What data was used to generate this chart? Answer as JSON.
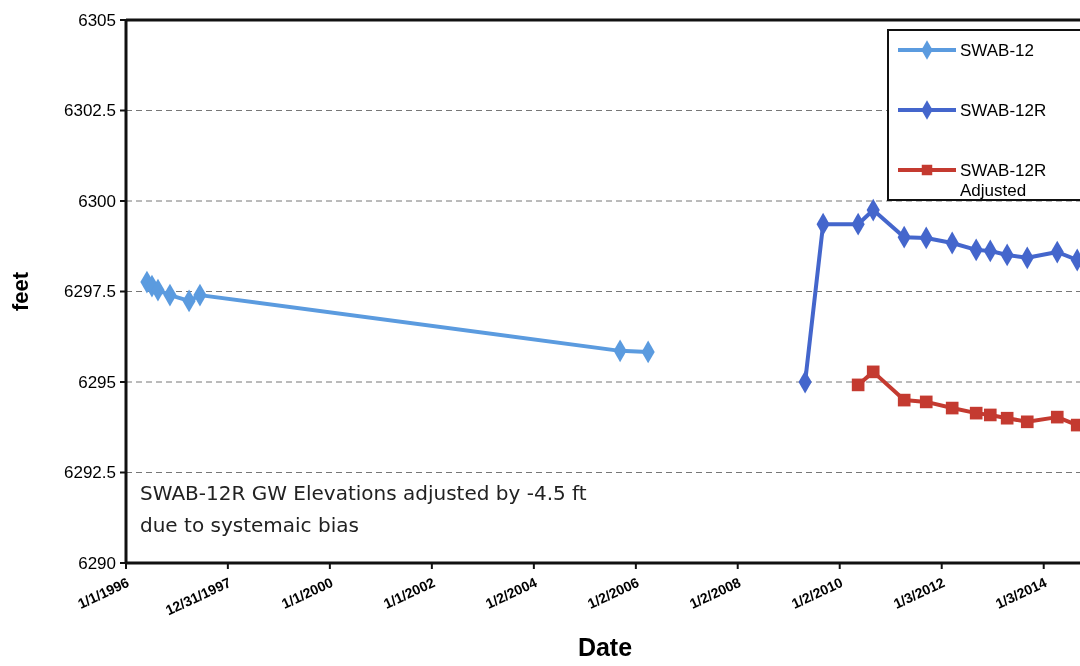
{
  "chart_data": {
    "type": "line",
    "xlabel": "Date",
    "ylabel": "feet",
    "xlim": [
      "1996-01-01",
      "2014-09-20"
    ],
    "xticks": [
      {
        "value": "1996-01-01",
        "label": "1/1/1996"
      },
      {
        "value": "1997-12-31",
        "label": "12/31/1997"
      },
      {
        "value": "2000-01-01",
        "label": "1/1/2000"
      },
      {
        "value": "2002-01-01",
        "label": "1/1/2002"
      },
      {
        "value": "2004-01-02",
        "label": "1/2/2004"
      },
      {
        "value": "2006-01-02",
        "label": "1/2/2006"
      },
      {
        "value": "2008-01-02",
        "label": "1/2/2008"
      },
      {
        "value": "2010-01-02",
        "label": "1/2/2010"
      },
      {
        "value": "2012-01-03",
        "label": "1/3/2012"
      },
      {
        "value": "2014-01-03",
        "label": "1/3/2014"
      }
    ],
    "ylim": [
      6290,
      6305
    ],
    "yticks": [
      6290,
      6292.5,
      6295,
      6297.5,
      6300,
      6302.5,
      6305
    ],
    "grid": "y",
    "legend": "top right",
    "series": [
      {
        "name": "SWAB-12",
        "color": "#5b9bdf",
        "marker": "diamond",
        "x": [
          "1996-05-30",
          "1996-07-05",
          "1996-08-17",
          "1996-11-11",
          "1997-03-28",
          "1997-06-14",
          "2005-09-11",
          "2006-03-31"
        ],
        "values": [
          6297.76,
          6297.65,
          6297.54,
          6297.4,
          6297.24,
          6297.4,
          6295.86,
          6295.83
        ]
      },
      {
        "name": "SWAB-12R",
        "color": "#4466cc",
        "marker": "diamond",
        "x": [
          "2009-04-29",
          "2009-09-05",
          "2010-05-14",
          "2010-08-30",
          "2011-04-09",
          "2011-09-14",
          "2012-03-18",
          "2012-09-06",
          "2012-12-16",
          "2013-04-16",
          "2013-09-07",
          "2014-04-10",
          "2014-08-31"
        ],
        "values": [
          6295.0,
          6299.36,
          6299.36,
          6299.75,
          6299.0,
          6298.98,
          6298.84,
          6298.65,
          6298.62,
          6298.51,
          6298.43,
          6298.59,
          6298.37
        ]
      },
      {
        "name": "SWAB-12R Adjusted",
        "color": "#c43a30",
        "marker": "square",
        "x": [
          "2010-05-14",
          "2010-08-30",
          "2011-04-09",
          "2011-09-14",
          "2012-03-18",
          "2012-09-06",
          "2012-12-16",
          "2013-04-16",
          "2013-09-07",
          "2014-04-10",
          "2014-08-31"
        ],
        "values": [
          6294.92,
          6295.28,
          6294.5,
          6294.45,
          6294.28,
          6294.14,
          6294.09,
          6294.0,
          6293.9,
          6294.03,
          6293.81
        ]
      }
    ],
    "annotations": [
      "SWAB-12R GW Elevations adjusted by -4.5 ft\ndue to systemaic bias"
    ]
  }
}
